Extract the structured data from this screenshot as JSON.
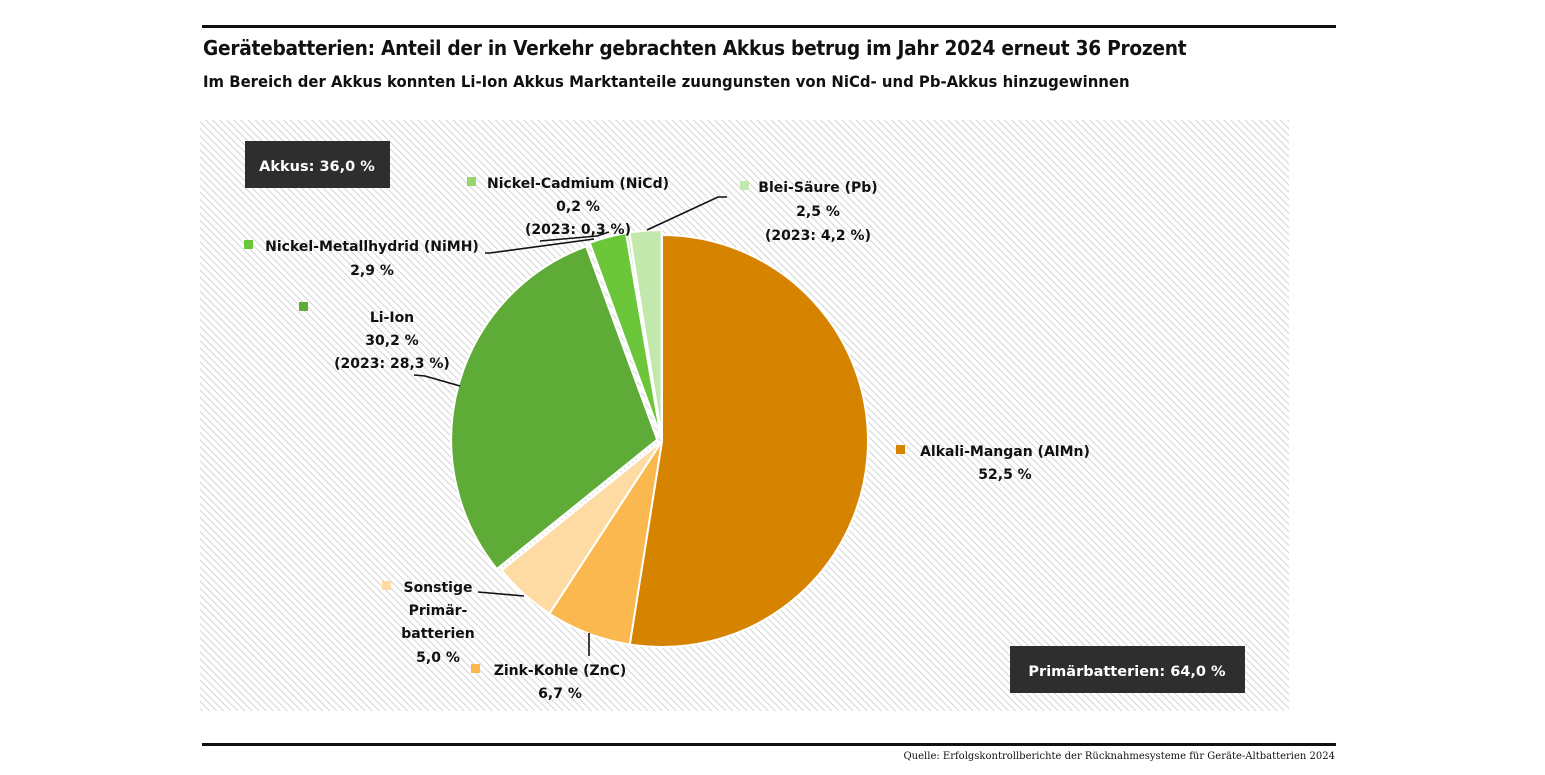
{
  "header": {
    "title": "Gerätebatterien: Anteil der in Verkehr gebrachten Akkus betrug im Jahr 2024 erneut 36 Prozent",
    "subtitle": "Im Bereich der Akkus konnten Li-Ion Akkus Marktanteile zuungunsten von NiCd- und Pb-Akkus hinzugewinnen"
  },
  "footer": {
    "source": "Quelle: Erfolgskontrollberichte der Rücknahmesysteme für Geräte-Altbatterien 2024"
  },
  "chart_data": {
    "type": "pie",
    "title": "Gerätebatterien: Anteil der in Verkehr gebrachten Akkus betrug im Jahr 2024 erneut 36 Prozent",
    "subtitle": "Im Bereich der Akkus konnten Li-Ion Akkus Marktanteile zuungunsten von NiCd- und Pb-Akkus hinzugewinnen",
    "unit": "%",
    "groups": [
      {
        "name": "Akkus",
        "label": "Akkus: 36,0 %",
        "value": 36.0
      },
      {
        "name": "Primärbatterien",
        "label": "Primärbatterien: 64,0 %",
        "value": 64.0
      }
    ],
    "slices": [
      {
        "key": "almn",
        "name": "Alkali-Mangan (AlMn)",
        "name_lines": [
          "Alkali-Mangan (AlMn)"
        ],
        "value": 52.5,
        "value_label": "52,5 %",
        "prev_label": null,
        "group": "Primärbatterien",
        "color": "#d68400"
      },
      {
        "key": "znc",
        "name": "Zink-Kohle (ZnC)",
        "name_lines": [
          "Zink-Kohle (ZnC)"
        ],
        "value": 6.7,
        "value_label": "6,7 %",
        "prev_label": null,
        "group": "Primärbatterien",
        "color": "#fbb84e"
      },
      {
        "key": "sonstige",
        "name": "Sonstige Primärbatterien",
        "name_lines": [
          "Sonstige",
          "Primär-",
          "batterien"
        ],
        "value": 5.0,
        "value_label": "5,0 %",
        "prev_label": null,
        "group": "Primärbatterien",
        "color": "#fddba3"
      },
      {
        "key": "liion",
        "name": "Li-Ion",
        "name_lines": [
          "Li-Ion"
        ],
        "value": 30.2,
        "value_label": "30,2 %",
        "prev_label": "(2023: 28,3 %)",
        "group": "Akkus",
        "color": "#5fab37"
      },
      {
        "key": "nimh",
        "name": "Nickel-Metallhydrid (NiMH)",
        "name_lines": [
          "Nickel-Metallhydrid (NiMH)"
        ],
        "value": 2.9,
        "value_label": "2,9 %",
        "prev_label": null,
        "group": "Akkus",
        "color": "#6cc63a"
      },
      {
        "key": "nicd",
        "name": "Nickel-Cadmium (NiCd)",
        "name_lines": [
          "Nickel-Cadmium (NiCd)"
        ],
        "value": 0.2,
        "value_label": "0,2 %",
        "prev_label": "(2023: 0,3 %)",
        "group": "Akkus",
        "color": "#96d66b"
      },
      {
        "key": "pb",
        "name": "Blei-Säure (Pb)",
        "name_lines": [
          "Blei-Säure (Pb)"
        ],
        "value": 2.5,
        "value_label": "2,5 %",
        "prev_label": "(2023: 4,2 %)",
        "group": "Akkus",
        "color": "#c3e8ad"
      }
    ],
    "start_angle": "12 o'clock",
    "direction": "clockwise",
    "exploded_group": "Akkus",
    "legend": "inline labels with color squares"
  }
}
